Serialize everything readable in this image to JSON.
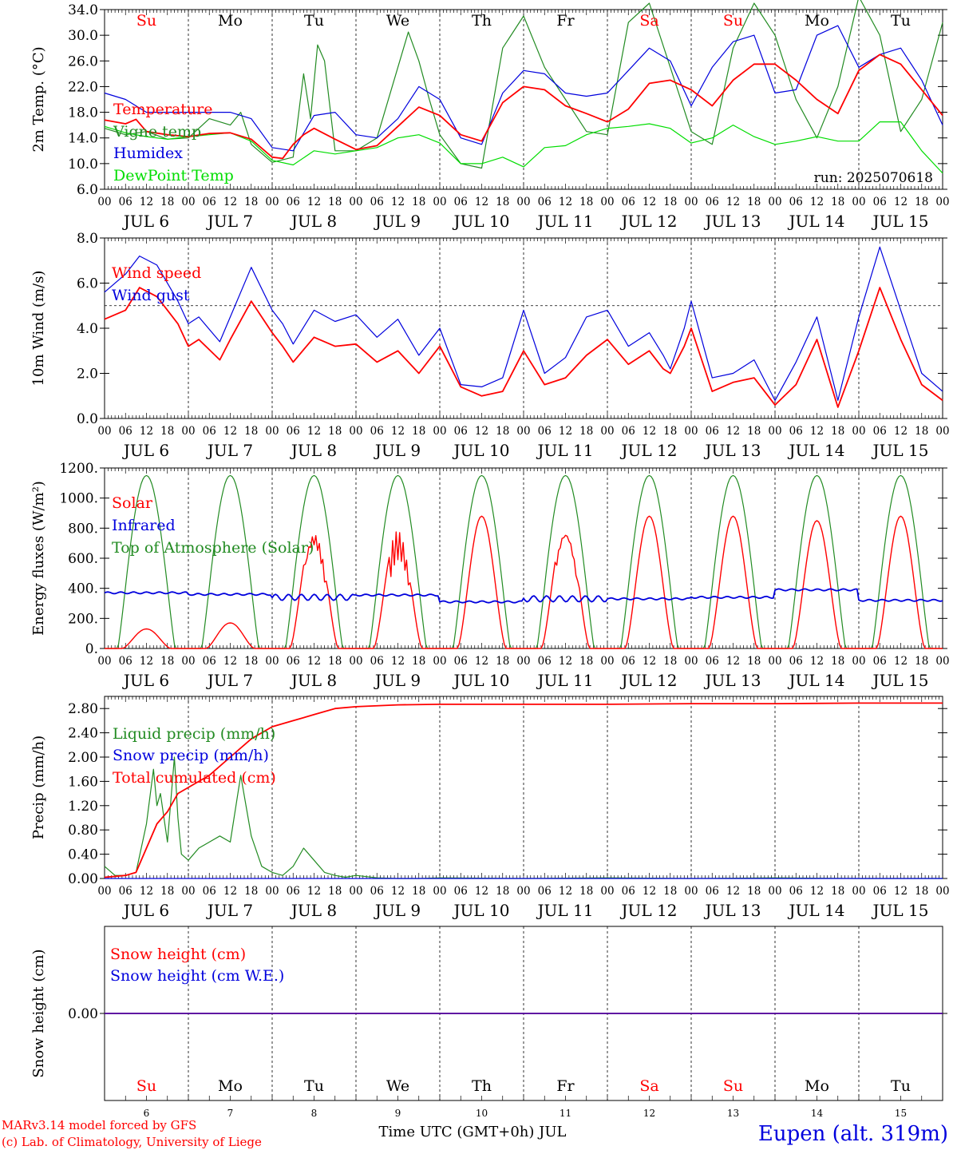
{
  "run_label": "run: 2025070618",
  "footer": {
    "model_line": "MARv3.14 model forced by GFS",
    "lab_line": "(c) Lab. of Climatology, University of Liege",
    "xaxis_title": "Time UTC (GMT+0h) JUL",
    "station": "Eupen (alt. 319m)"
  },
  "colors": {
    "red": "#ff0000",
    "green": "#228b22",
    "blue": "#0000dd",
    "light_green": "#00dd00",
    "black": "#000000"
  },
  "days": [
    "JUL  6",
    "JUL  7",
    "JUL  8",
    "JUL  9",
    "JUL 10",
    "JUL 11",
    "JUL 12",
    "JUL 13",
    "JUL 14",
    "JUL 15"
  ],
  "day_numbers": [
    "6",
    "7",
    "8",
    "9",
    "10",
    "11",
    "12",
    "13",
    "14",
    "15"
  ],
  "weekdays": [
    "Su",
    "Mo",
    "Tu",
    "We",
    "Th",
    "Fr",
    "Sa",
    "Su",
    "Mo",
    "Tu"
  ],
  "weekday_colors": [
    "red",
    "black",
    "black",
    "black",
    "black",
    "black",
    "red",
    "red",
    "black",
    "black"
  ],
  "hour_labels": [
    "00",
    "06",
    "12",
    "18"
  ],
  "chart_data": [
    {
      "id": "temperature",
      "type": "line",
      "ylabel": "2m Temp. (°C)",
      "ylim": [
        6,
        34
      ],
      "yticks": [
        6,
        10,
        14,
        18,
        22,
        26,
        30,
        34
      ],
      "ytick_labels": [
        "6.0",
        "10.0",
        "14.0",
        "18.0",
        "22.0",
        "26.0",
        "30.0",
        "34.0"
      ],
      "x_unit": "hours since JUL 6 00 UTC",
      "xlim": [
        0,
        240
      ],
      "series": [
        {
          "name": "Temperature",
          "color": "red",
          "x": [
            0,
            6,
            9,
            12,
            18,
            24,
            30,
            36,
            42,
            48,
            51,
            54,
            57,
            60,
            66,
            72,
            78,
            84,
            90,
            96,
            102,
            108,
            114,
            120,
            126,
            132,
            138,
            144,
            150,
            156,
            162,
            168,
            174,
            180,
            186,
            192,
            198,
            204,
            210,
            216,
            222,
            228,
            234,
            240
          ],
          "y": [
            16.8,
            16.2,
            16.9,
            15,
            14.5,
            14.2,
            14.7,
            14.8,
            13.8,
            11,
            10.8,
            13,
            14.5,
            15.5,
            13.8,
            12.2,
            12.8,
            15.8,
            18.8,
            17.5,
            14.5,
            13.5,
            19.5,
            22,
            21.5,
            19,
            17.8,
            16.5,
            18.5,
            22.5,
            23,
            21.5,
            19,
            23,
            25.5,
            25.5,
            23,
            20,
            17.8,
            24.5,
            27,
            25.5,
            21.5,
            17.5
          ]
        },
        {
          "name": "Vigne temp",
          "color": "green",
          "x": [
            0,
            6,
            12,
            18,
            24,
            30,
            36,
            39,
            42,
            48,
            54,
            57,
            59,
            61,
            63,
            66,
            72,
            78,
            84,
            87,
            90,
            93,
            96,
            102,
            108,
            114,
            120,
            126,
            132,
            138,
            144,
            150,
            156,
            162,
            168,
            174,
            180,
            186,
            192,
            198,
            204,
            210,
            216,
            222,
            228,
            234,
            240
          ],
          "y": [
            15.5,
            14.5,
            15,
            13.8,
            14,
            17,
            16,
            18,
            13,
            10.2,
            11,
            24,
            17,
            28.5,
            26,
            12,
            12,
            14,
            25,
            30.5,
            26,
            20,
            14.5,
            10,
            9.3,
            28,
            33,
            25,
            20,
            15,
            14.5,
            32,
            35,
            25,
            15,
            13,
            28,
            35,
            30,
            20,
            14,
            22,
            36,
            30,
            15,
            20,
            32
          ]
        },
        {
          "name": "Humidex",
          "color": "blue",
          "x": [
            0,
            6,
            12,
            18,
            24,
            30,
            36,
            42,
            48,
            54,
            60,
            66,
            72,
            78,
            84,
            90,
            96,
            102,
            108,
            114,
            120,
            126,
            132,
            138,
            144,
            150,
            156,
            162,
            168,
            174,
            180,
            186,
            192,
            198,
            204,
            210,
            216,
            222,
            228,
            234,
            240
          ],
          "y": [
            21,
            20,
            18,
            18,
            18,
            18,
            18,
            17,
            12.5,
            12,
            17.5,
            18,
            14.5,
            14,
            17,
            22,
            20,
            14,
            13,
            21,
            24.5,
            24,
            21,
            20.5,
            21,
            24.5,
            28,
            26,
            19,
            25,
            29,
            30,
            21,
            21.5,
            30,
            31.5,
            25,
            27,
            28,
            23,
            16
          ]
        },
        {
          "name": "DewPoint Temp",
          "color": "light_green",
          "x": [
            0,
            6,
            12,
            18,
            24,
            30,
            36,
            42,
            48,
            54,
            60,
            66,
            72,
            78,
            84,
            90,
            96,
            102,
            108,
            114,
            120,
            126,
            132,
            138,
            144,
            150,
            156,
            162,
            168,
            174,
            180,
            186,
            192,
            198,
            204,
            210,
            216,
            222,
            228,
            234,
            240
          ],
          "y": [
            15.8,
            14.8,
            14.2,
            13.8,
            14.2,
            14.5,
            14.8,
            13.5,
            10.5,
            9.8,
            12,
            11.5,
            12,
            12.5,
            14,
            14.5,
            13.2,
            10,
            10,
            11,
            9.5,
            12.5,
            12.8,
            14.5,
            15.5,
            15.8,
            16.2,
            15.5,
            13.2,
            14,
            16,
            14.2,
            13,
            13.5,
            14.2,
            13.5,
            13.5,
            16.5,
            16.5,
            12,
            8.5
          ]
        }
      ]
    },
    {
      "id": "wind",
      "type": "line",
      "ylabel": "10m Wind (m/s)",
      "ylim": [
        0,
        8
      ],
      "yticks": [
        0,
        2,
        4,
        6,
        8
      ],
      "ytick_labels": [
        "0.0",
        "2.0",
        "4.0",
        "6.0",
        "8.0"
      ],
      "reference_line": 5.0,
      "xlim": [
        0,
        240
      ],
      "series": [
        {
          "name": "Wind speed",
          "color": "red",
          "x": [
            0,
            6,
            10,
            15,
            21,
            24,
            27,
            33,
            36,
            42,
            48,
            51,
            54,
            60,
            66,
            72,
            78,
            84,
            90,
            96,
            102,
            108,
            114,
            120,
            126,
            132,
            138,
            144,
            150,
            156,
            160,
            162,
            166,
            168,
            174,
            180,
            186,
            192,
            198,
            204,
            210,
            216,
            222,
            228,
            234,
            240
          ],
          "y": [
            4.4,
            4.8,
            5.8,
            5.4,
            4.2,
            3.2,
            3.5,
            2.6,
            3.5,
            5.2,
            3.8,
            3.2,
            2.5,
            3.6,
            3.2,
            3.3,
            2.5,
            3.0,
            2.0,
            3.2,
            1.4,
            1.0,
            1.2,
            3.0,
            1.5,
            1.8,
            2.8,
            3.5,
            2.4,
            3.0,
            2.2,
            2.0,
            3.2,
            4.0,
            1.2,
            1.6,
            1.8,
            0.6,
            1.5,
            3.5,
            0.5,
            3.0,
            5.8,
            3.5,
            1.5,
            0.8
          ]
        },
        {
          "name": "Wind gust",
          "color": "blue",
          "x": [
            0,
            6,
            10,
            15,
            21,
            24,
            27,
            33,
            36,
            42,
            48,
            51,
            54,
            60,
            66,
            72,
            78,
            84,
            90,
            96,
            102,
            108,
            114,
            120,
            126,
            132,
            138,
            144,
            150,
            156,
            160,
            162,
            166,
            168,
            174,
            180,
            186,
            192,
            198,
            204,
            210,
            216,
            222,
            228,
            234,
            240
          ],
          "y": [
            5.6,
            6.4,
            7.2,
            6.8,
            5.2,
            4.2,
            4.5,
            3.4,
            4.5,
            6.7,
            4.8,
            4.2,
            3.3,
            4.8,
            4.3,
            4.6,
            3.6,
            4.4,
            2.8,
            4.0,
            1.5,
            1.4,
            1.8,
            4.8,
            2.0,
            2.7,
            4.5,
            4.8,
            3.2,
            3.8,
            2.8,
            2.2,
            4.0,
            5.2,
            1.8,
            2.0,
            2.6,
            0.8,
            2.5,
            4.5,
            0.8,
            4.5,
            7.6,
            4.8,
            2.0,
            1.2
          ]
        }
      ]
    },
    {
      "id": "energy",
      "type": "line",
      "ylabel": "Energy fluxes (W/m²)",
      "ylim": [
        0,
        1200
      ],
      "yticks": [
        0,
        200,
        400,
        600,
        800,
        1000,
        1200
      ],
      "ytick_labels": [
        "0.",
        "200.",
        "400.",
        "600.",
        "800.",
        "1000.",
        "1200."
      ],
      "xlim": [
        0,
        240
      ],
      "day_peak_toa": 1150,
      "solar_peaks": [
        130,
        170,
        820,
        800,
        880,
        850,
        880,
        880,
        850,
        880
      ],
      "infrared_levels": [
        370,
        360,
        340,
        355,
        310,
        330,
        330,
        340,
        390,
        320
      ],
      "series": [
        {
          "name": "Solar",
          "color": "red"
        },
        {
          "name": "Infrared",
          "color": "blue"
        },
        {
          "name": "Top of Atmosphere (Solar)",
          "color": "green"
        }
      ]
    },
    {
      "id": "precip",
      "type": "line",
      "ylabel": "Precip (mm/h)",
      "ylim": [
        0,
        3.0
      ],
      "yticks": [
        0,
        0.4,
        0.8,
        1.2,
        1.6,
        2.0,
        2.4,
        2.8
      ],
      "ytick_labels": [
        "0.00",
        "0.40",
        "0.80",
        "1.20",
        "1.60",
        "2.00",
        "2.40",
        "2.80"
      ],
      "xlim": [
        0,
        240
      ],
      "series": [
        {
          "name": "Liquid precip (mm/h)",
          "color": "green",
          "x": [
            0,
            3,
            6,
            9,
            12,
            14,
            15,
            16,
            18,
            20,
            21,
            22,
            24,
            27,
            30,
            33,
            36,
            39,
            42,
            45,
            48,
            51,
            54,
            57,
            60,
            63,
            66,
            69,
            72,
            78,
            84,
            90,
            96,
            120,
            144,
            168,
            192,
            216,
            240
          ],
          "y": [
            0.2,
            0.05,
            0.05,
            0.1,
            0.9,
            1.8,
            1.2,
            1.4,
            0.6,
            2.0,
            1.0,
            0.4,
            0.3,
            0.5,
            0.6,
            0.7,
            0.6,
            1.7,
            0.7,
            0.2,
            0.1,
            0.05,
            0.2,
            0.5,
            0.3,
            0.1,
            0.05,
            0.02,
            0.05,
            0.01,
            0,
            0,
            0.01,
            0,
            0.01,
            0,
            0.01,
            0,
            0
          ]
        },
        {
          "name": "Snow precip (mm/h)",
          "color": "blue",
          "x": [
            0,
            240
          ],
          "y": [
            0,
            0
          ]
        },
        {
          "name": "Total cumulated (cm)",
          "color": "red",
          "x": [
            0,
            6,
            9,
            12,
            15,
            18,
            21,
            24,
            30,
            36,
            42,
            48,
            54,
            60,
            66,
            72,
            84,
            96,
            120,
            144,
            168,
            192,
            216,
            240
          ],
          "y": [
            0.02,
            0.05,
            0.1,
            0.5,
            0.9,
            1.1,
            1.4,
            1.5,
            1.7,
            2.0,
            2.3,
            2.5,
            2.6,
            2.7,
            2.8,
            2.83,
            2.86,
            2.87,
            2.87,
            2.87,
            2.88,
            2.88,
            2.89,
            2.89
          ]
        }
      ]
    },
    {
      "id": "snow",
      "type": "line",
      "ylabel": "Snow height (cm)",
      "ylim": [
        -1,
        1
      ],
      "yticks": [
        0
      ],
      "ytick_labels": [
        "0.00"
      ],
      "xlim": [
        0,
        240
      ],
      "series": [
        {
          "name": "Snow height (cm)",
          "color": "red",
          "x": [
            0,
            240
          ],
          "y": [
            0,
            0
          ]
        },
        {
          "name": "Snow height (cm W.E.)",
          "color": "blue",
          "x": [
            0,
            240
          ],
          "y": [
            0,
            0
          ]
        }
      ]
    }
  ]
}
